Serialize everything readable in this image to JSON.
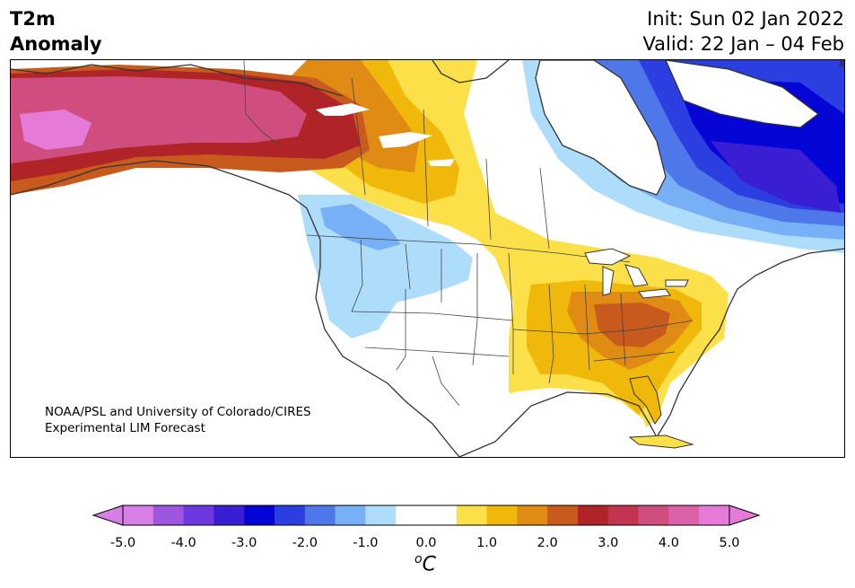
{
  "header": {
    "var_line1": "T2m",
    "var_line2": "Anomaly",
    "init": "Init: Sun 02 Jan 2022",
    "valid": "Valid: 22 Jan – 04 Feb"
  },
  "credit": {
    "line1": "NOAA/PSL and University of Colorado/CIRES",
    "line2": "Experimental LIM Forecast"
  },
  "colorbar": {
    "unit_base": "C",
    "unit_sup": "o",
    "tick_labels": [
      "-5.0",
      "-4.0",
      "-3.0",
      "-2.0",
      "-1.0",
      "0.0",
      "1.0",
      "2.0",
      "3.0",
      "4.0",
      "5.0"
    ],
    "colors": [
      "#d77fe6",
      "#9e55e0",
      "#6b39df",
      "#3a1ed3",
      "#0505d6",
      "#2b3fe0",
      "#4e77ea",
      "#78b0f5",
      "#aedcfb",
      "#ffffff",
      "#ffffff",
      "#fbe04a",
      "#f0b80a",
      "#e08b14",
      "#c75a1c",
      "#b02428",
      "#c23450",
      "#cf4d7f",
      "#dc62a8",
      "#e67ad7"
    ],
    "over_color": "#e67ad7",
    "under_color": "#d77fe6"
  }
}
